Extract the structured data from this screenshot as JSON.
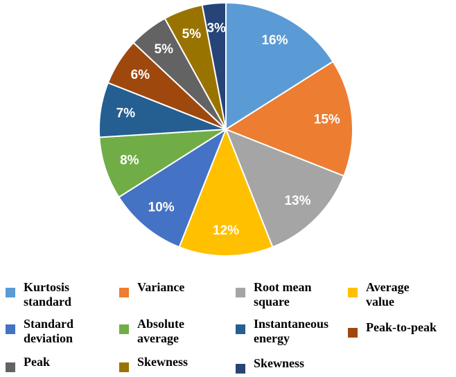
{
  "chart_data": {
    "type": "pie",
    "slices": [
      {
        "label": "16%",
        "value": 16,
        "color": "#5b9bd5"
      },
      {
        "label": "15%",
        "value": 15,
        "color": "#ed7d31"
      },
      {
        "label": "13%",
        "value": 13,
        "color": "#a5a5a5"
      },
      {
        "label": "12%",
        "value": 12,
        "color": "#ffc000"
      },
      {
        "label": "10%",
        "value": 10,
        "color": "#4472c4"
      },
      {
        "label": "8%",
        "value": 8,
        "color": "#70ad47"
      },
      {
        "label": "7%",
        "value": 7,
        "color": "#255e91"
      },
      {
        "label": "6%",
        "value": 6,
        "color": "#9e480e"
      },
      {
        "label": "5%",
        "value": 5,
        "color": "#636363"
      },
      {
        "label": "5%",
        "value": 5,
        "color": "#997300"
      },
      {
        "label": "3%",
        "value": 3,
        "color": "#264478"
      }
    ],
    "legend": [
      {
        "line1": "Kurtosis",
        "line2": "standard",
        "color": "#5b9bd5"
      },
      {
        "line1": "Variance",
        "line2": "",
        "color": "#ed7d31"
      },
      {
        "line1": "Root mean",
        "line2": "square",
        "color": "#a5a5a5"
      },
      {
        "line1": "Average",
        "line2": "value",
        "color": "#ffc000"
      },
      {
        "line1": "Standard",
        "line2": "deviation",
        "color": "#4472c4"
      },
      {
        "line1": "Absolute",
        "line2": "average",
        "color": "#70ad47"
      },
      {
        "line1": "Instantaneous",
        "line2": "energy",
        "color": "#255e91"
      },
      {
        "line1": "Peak-to-peak",
        "line2": "",
        "color": "#9e480e"
      },
      {
        "line1": "Peak",
        "line2": "",
        "color": "#636363"
      },
      {
        "line1": "Skewness",
        "line2": "",
        "color": "#997300"
      },
      {
        "line1": "Skewness",
        "line2": "",
        "color": "#264478"
      }
    ]
  }
}
